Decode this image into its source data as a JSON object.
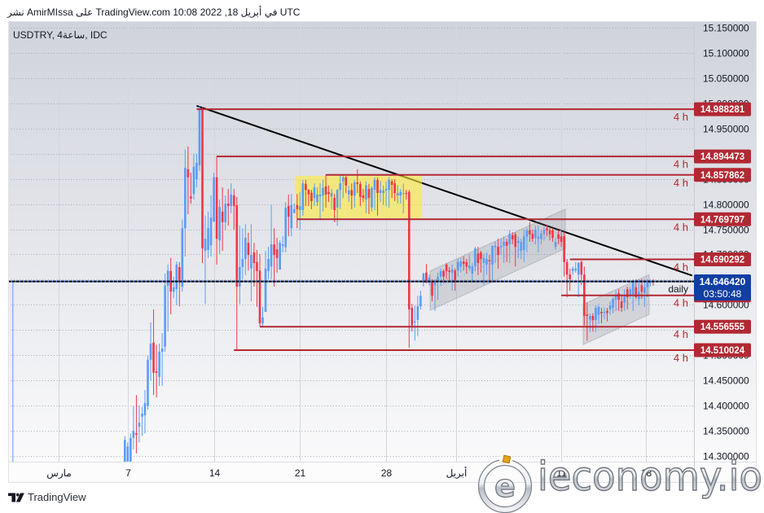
{
  "header": {
    "published_line": "نشر AmirMIssa على TradingView.com في أبريل 18, 2022 10:08 UTC"
  },
  "chart": {
    "symbol_line": "USDTRY, 4ساعة, IDC"
  },
  "footer": {
    "brand": "TradingView",
    "logo_icon": "tradingview-logo-icon"
  },
  "watermark": {
    "text": "ieconomy.io",
    "logo_icon": "ieconomy-e-logo-icon"
  },
  "colors": {
    "up": "#5b9cf6",
    "down": "#f23645",
    "level": "#b22833",
    "current_price_bg": "#113fa3",
    "current_price_line": "#3d6fe0",
    "trendline": "#000000",
    "highlight": "rgba(255,235,59,0.6)",
    "channel_fill": "rgba(120,123,134,0.22)",
    "channel_edge": "rgba(120,123,134,0.35)",
    "channel_mid": "#9db9ea"
  },
  "chart_data": {
    "type": "candlestick",
    "title": "USDTRY, 4ساعة, IDC",
    "xlabel": "",
    "ylabel": "",
    "ylim": [
      14.2887,
      15.1629
    ],
    "xlim_bars": [
      -40.65,
      198.2
    ],
    "grid": true,
    "y_ticks": [
      "15.150000",
      "15.100000",
      "15.050000",
      "15.000000",
      "14.950000",
      "14.900000",
      "14.850000",
      "14.800000",
      "14.750000",
      "14.700000",
      "14.650000",
      "14.600000",
      "14.550000",
      "14.500000",
      "14.450000",
      "14.400000",
      "14.350000",
      "14.300000"
    ],
    "x_ticks": [
      {
        "label": "مارس",
        "bar": -23
      },
      {
        "label": "7",
        "bar": 1
      },
      {
        "label": "14",
        "bar": 31
      },
      {
        "label": "21",
        "bar": 61
      },
      {
        "label": "28",
        "bar": 91
      },
      {
        "label": "أبريل",
        "bar": 115.5
      },
      {
        "label": "11",
        "bar": 152
      },
      {
        "label": "18",
        "bar": 181.5
      }
    ],
    "ohlc_order": [
      "open",
      "high",
      "low",
      "close"
    ],
    "first_bar": 0,
    "extra_bars": [
      {
        "bar": -39,
        "ohlc": [
          14.646,
          14.647,
          14.23,
          14.647
        ]
      }
    ],
    "candles": [
      [
        14.284,
        14.34,
        14.276,
        14.332
      ],
      [
        14.289,
        14.327,
        14.276,
        14.319
      ],
      [
        14.289,
        14.345,
        14.276,
        14.336
      ],
      [
        14.336,
        14.399,
        14.313,
        14.35
      ],
      [
        14.345,
        14.421,
        14.305,
        14.342
      ],
      [
        14.358,
        14.4,
        14.327,
        14.366
      ],
      [
        14.378,
        14.397,
        14.34,
        14.384
      ],
      [
        14.381,
        14.431,
        14.345,
        14.405
      ],
      [
        14.399,
        14.499,
        14.392,
        14.491
      ],
      [
        14.491,
        14.565,
        14.45,
        14.523
      ],
      [
        14.525,
        14.591,
        14.421,
        14.465
      ],
      [
        14.468,
        14.521,
        14.416,
        14.465
      ],
      [
        14.457,
        14.523,
        14.439,
        14.507
      ],
      [
        14.507,
        14.544,
        14.439,
        14.513
      ],
      [
        14.517,
        14.662,
        14.507,
        14.638
      ],
      [
        14.638,
        14.68,
        14.547,
        14.668
      ],
      [
        14.667,
        14.693,
        14.581,
        14.626
      ],
      [
        14.626,
        14.656,
        14.613,
        14.635
      ],
      [
        14.631,
        14.686,
        14.599,
        14.68
      ],
      [
        14.675,
        14.685,
        14.597,
        14.644
      ],
      [
        14.636,
        14.769,
        14.626,
        14.752
      ],
      [
        14.752,
        14.908,
        14.696,
        14.872
      ],
      [
        14.869,
        14.914,
        14.78,
        14.853
      ],
      [
        14.815,
        14.862,
        14.801,
        14.811
      ],
      [
        14.82,
        14.9,
        14.809,
        14.874
      ],
      [
        14.849,
        14.9,
        14.833,
        14.882
      ],
      [
        14.877,
        14.995,
        14.866,
        14.987
      ],
      [
        14.988,
        14.992,
        14.683,
        14.712
      ],
      [
        14.707,
        14.777,
        14.602,
        14.731
      ],
      [
        14.709,
        14.785,
        14.693,
        14.752
      ],
      [
        14.718,
        14.817,
        14.696,
        14.773
      ],
      [
        14.765,
        14.862,
        14.765,
        14.853
      ],
      [
        14.853,
        14.895,
        14.68,
        14.731
      ],
      [
        14.728,
        14.809,
        14.701,
        14.794
      ],
      [
        14.785,
        14.833,
        14.707,
        14.764
      ],
      [
        14.764,
        14.817,
        14.748,
        14.801
      ],
      [
        14.801,
        14.83,
        14.757,
        14.796
      ],
      [
        14.796,
        14.841,
        14.782,
        14.819
      ],
      [
        14.817,
        14.83,
        14.749,
        14.796
      ],
      [
        14.798,
        14.814,
        14.51,
        14.636
      ],
      [
        14.636,
        14.757,
        14.602,
        14.675
      ],
      [
        14.675,
        14.752,
        14.651,
        14.691
      ],
      [
        14.691,
        14.76,
        14.659,
        14.733
      ],
      [
        14.723,
        14.743,
        14.668,
        14.699
      ],
      [
        14.672,
        14.76,
        14.607,
        14.699
      ],
      [
        14.704,
        14.723,
        14.636,
        14.683
      ],
      [
        14.685,
        14.709,
        14.596,
        14.667
      ],
      [
        14.668,
        14.701,
        14.557,
        14.563
      ],
      [
        14.563,
        14.596,
        14.558,
        14.575
      ],
      [
        14.586,
        14.707,
        14.586,
        14.672
      ],
      [
        14.667,
        14.715,
        14.651,
        14.691
      ],
      [
        14.676,
        14.798,
        14.651,
        14.72
      ],
      [
        14.72,
        14.752,
        14.636,
        14.699
      ],
      [
        14.71,
        14.733,
        14.664,
        14.693
      ],
      [
        14.67,
        14.728,
        14.67,
        14.723
      ],
      [
        14.717,
        14.736,
        14.704,
        14.72
      ],
      [
        14.714,
        14.804,
        14.704,
        14.793
      ],
      [
        14.796,
        14.819,
        14.736,
        14.775
      ],
      [
        14.752,
        14.82,
        14.736,
        14.798
      ],
      [
        14.782,
        14.801,
        14.782,
        14.79
      ],
      [
        14.798,
        14.82,
        14.752,
        14.79
      ],
      [
        14.788,
        14.824,
        14.749,
        14.796
      ],
      [
        14.788,
        14.848,
        14.777,
        14.841
      ],
      [
        14.84,
        14.848,
        14.796,
        14.828
      ],
      [
        14.828,
        14.83,
        14.796,
        14.819
      ],
      [
        14.822,
        14.828,
        14.79,
        14.806
      ],
      [
        14.812,
        14.841,
        14.796,
        14.833
      ],
      [
        14.804,
        14.833,
        14.796,
        14.819
      ],
      [
        14.815,
        14.841,
        14.769,
        14.819
      ],
      [
        14.817,
        14.848,
        14.785,
        14.832
      ],
      [
        14.835,
        14.858,
        14.793,
        14.819
      ],
      [
        14.824,
        14.837,
        14.804,
        14.82
      ],
      [
        14.815,
        14.83,
        14.79,
        14.822
      ],
      [
        14.812,
        14.82,
        14.764,
        14.788
      ],
      [
        14.793,
        14.83,
        14.757,
        14.828
      ],
      [
        14.828,
        14.858,
        14.79,
        14.841
      ],
      [
        14.845,
        14.858,
        14.812,
        14.853
      ],
      [
        14.853,
        14.856,
        14.822,
        14.837
      ],
      [
        14.819,
        14.837,
        14.804,
        14.827
      ],
      [
        14.828,
        14.841,
        14.79,
        14.817
      ],
      [
        14.817,
        14.848,
        14.793,
        14.843
      ],
      [
        14.843,
        14.869,
        14.822,
        14.84
      ],
      [
        14.84,
        14.845,
        14.796,
        14.814
      ],
      [
        14.817,
        14.83,
        14.804,
        14.812
      ],
      [
        14.809,
        14.845,
        14.782,
        14.837
      ],
      [
        14.83,
        14.84,
        14.78,
        14.812
      ],
      [
        14.793,
        14.835,
        14.785,
        14.832
      ],
      [
        14.828,
        14.853,
        14.788,
        14.848
      ],
      [
        14.848,
        14.853,
        14.777,
        14.822
      ],
      [
        14.822,
        14.846,
        14.804,
        14.828
      ],
      [
        14.822,
        14.837,
        14.798,
        14.827
      ],
      [
        14.827,
        14.845,
        14.796,
        14.83
      ],
      [
        14.828,
        14.854,
        14.793,
        14.848
      ],
      [
        14.845,
        14.849,
        14.812,
        14.838
      ],
      [
        14.841,
        14.849,
        14.806,
        14.822
      ],
      [
        14.817,
        14.837,
        14.801,
        14.822
      ],
      [
        14.817,
        14.83,
        14.801,
        14.824
      ],
      [
        14.82,
        14.841,
        14.782,
        14.822
      ],
      [
        14.822,
        14.828,
        14.809,
        14.82
      ],
      [
        14.824,
        14.828,
        14.515,
        14.591
      ],
      [
        14.594,
        14.602,
        14.547,
        14.559
      ],
      [
        14.565,
        14.599,
        14.529,
        14.567
      ],
      [
        14.57,
        14.618,
        14.538,
        14.597
      ],
      [
        14.597,
        14.628,
        14.591,
        14.618
      ],
      [
        14.644,
        14.664,
        14.636,
        14.662
      ],
      [
        14.664,
        14.681,
        14.643,
        14.644
      ],
      [
        14.644,
        14.66,
        14.639,
        14.654
      ],
      [
        14.646,
        14.651,
        14.607,
        14.618
      ],
      [
        14.639,
        14.651,
        14.588,
        14.647
      ],
      [
        14.647,
        14.664,
        14.61,
        14.656
      ],
      [
        14.656,
        14.672,
        14.639,
        14.667
      ],
      [
        14.667,
        14.67,
        14.643,
        14.656
      ],
      [
        14.68,
        14.683,
        14.651,
        14.667
      ],
      [
        14.668,
        14.675,
        14.644,
        14.665
      ],
      [
        14.664,
        14.68,
        14.628,
        14.67
      ],
      [
        14.668,
        14.672,
        14.628,
        14.644
      ],
      [
        14.668,
        14.691,
        14.656,
        14.685
      ],
      [
        14.676,
        14.693,
        14.664,
        14.686
      ],
      [
        14.686,
        14.696,
        14.668,
        14.681
      ],
      [
        14.685,
        14.691,
        14.662,
        14.676
      ],
      [
        14.672,
        14.699,
        14.667,
        14.678
      ],
      [
        14.662,
        14.683,
        14.644,
        14.676
      ],
      [
        14.676,
        14.715,
        14.667,
        14.712
      ],
      [
        14.702,
        14.715,
        14.659,
        14.683
      ],
      [
        14.704,
        14.707,
        14.664,
        14.691
      ],
      [
        14.683,
        14.701,
        14.639,
        14.693
      ],
      [
        14.68,
        14.704,
        14.66,
        14.691
      ],
      [
        14.689,
        14.699,
        14.644,
        14.686
      ],
      [
        14.68,
        14.718,
        14.644,
        14.717
      ],
      [
        14.714,
        14.725,
        14.683,
        14.717
      ],
      [
        14.715,
        14.731,
        14.672,
        14.699
      ],
      [
        14.714,
        14.731,
        14.699,
        14.717
      ],
      [
        14.717,
        14.736,
        14.683,
        14.725
      ],
      [
        14.725,
        14.731,
        14.685,
        14.717
      ],
      [
        14.72,
        14.748,
        14.683,
        14.741
      ],
      [
        14.738,
        14.744,
        14.72,
        14.73
      ],
      [
        14.74,
        14.744,
        14.676,
        14.715
      ],
      [
        14.723,
        14.736,
        14.693,
        14.727
      ],
      [
        14.707,
        14.731,
        14.691,
        14.725
      ],
      [
        14.709,
        14.749,
        14.685,
        14.736
      ],
      [
        14.736,
        14.752,
        14.704,
        14.748
      ],
      [
        14.748,
        14.764,
        14.725,
        14.74
      ],
      [
        14.741,
        14.749,
        14.725,
        14.731
      ],
      [
        14.733,
        14.757,
        14.72,
        14.749
      ],
      [
        14.731,
        14.757,
        14.704,
        14.735
      ],
      [
        14.731,
        14.748,
        14.72,
        14.741
      ],
      [
        14.74,
        14.756,
        14.728,
        14.749
      ],
      [
        14.752,
        14.759,
        14.736,
        14.748
      ],
      [
        14.748,
        14.752,
        14.728,
        14.74
      ],
      [
        14.748,
        14.752,
        14.725,
        14.733
      ],
      [
        14.715,
        14.733,
        14.709,
        14.725
      ],
      [
        14.74,
        14.748,
        14.72,
        14.731
      ],
      [
        14.736,
        14.744,
        14.715,
        14.725
      ],
      [
        14.736,
        14.744,
        14.656,
        14.685
      ],
      [
        14.685,
        14.691,
        14.615,
        14.66
      ],
      [
        14.66,
        14.672,
        14.628,
        14.651
      ],
      [
        14.667,
        14.676,
        14.66,
        14.672
      ],
      [
        14.668,
        14.685,
        14.664,
        14.672
      ],
      [
        14.66,
        14.685,
        14.615,
        14.683
      ],
      [
        14.685,
        14.688,
        14.639,
        14.66
      ],
      [
        14.66,
        14.676,
        14.559,
        14.578
      ],
      [
        14.581,
        14.604,
        14.529,
        14.578
      ],
      [
        14.571,
        14.583,
        14.546,
        14.578
      ],
      [
        14.578,
        14.583,
        14.547,
        14.57
      ],
      [
        14.57,
        14.599,
        14.546,
        14.594
      ],
      [
        14.58,
        14.602,
        14.562,
        14.596
      ],
      [
        14.586,
        14.594,
        14.563,
        14.583
      ],
      [
        14.584,
        14.594,
        14.571,
        14.586
      ],
      [
        14.588,
        14.594,
        14.567,
        14.584
      ],
      [
        14.591,
        14.607,
        14.58,
        14.599
      ],
      [
        14.594,
        14.615,
        14.583,
        14.612
      ],
      [
        14.61,
        14.628,
        14.588,
        14.618
      ],
      [
        14.623,
        14.631,
        14.588,
        14.61
      ],
      [
        14.607,
        14.618,
        14.586,
        14.594
      ],
      [
        14.604,
        14.631,
        14.588,
        14.618
      ],
      [
        14.631,
        14.636,
        14.591,
        14.615
      ],
      [
        14.618,
        14.636,
        14.612,
        14.631
      ],
      [
        14.618,
        14.651,
        14.588,
        14.644
      ],
      [
        14.635,
        14.651,
        14.612,
        14.615
      ],
      [
        14.612,
        14.651,
        14.599,
        14.626
      ],
      [
        14.639,
        14.651,
        14.612,
        14.626
      ],
      [
        14.623,
        14.651,
        14.596,
        14.635
      ],
      [
        14.635,
        14.651,
        14.615,
        14.644
      ],
      [
        14.643,
        14.651,
        14.636,
        14.647
      ],
      [
        14.648,
        14.651,
        14.638,
        14.646
      ]
    ],
    "levels": [
      {
        "price": 14.988281,
        "label": "14.988281",
        "timeframe": "4 h",
        "start_bar": 25
      },
      {
        "price": 14.894473,
        "label": "14.894473",
        "timeframe": "4 h",
        "start_bar": 32
      },
      {
        "price": 14.857862,
        "label": "14.857862",
        "timeframe": "4 h",
        "start_bar": 70
      },
      {
        "price": 14.769797,
        "label": "14.769797",
        "timeframe": "4 h",
        "start_bar": 60
      },
      {
        "price": 14.690292,
        "label": "14.690292",
        "timeframe": "4 h",
        "start_bar": 155
      },
      {
        "price": 14.6188,
        "timeframe": "4 h",
        "start_bar": 152
      },
      {
        "price": 14.556555,
        "label": "14.556555",
        "timeframe": "4 h",
        "start_bar": 47
      },
      {
        "price": 14.510024,
        "label": "14.510024",
        "timeframe": "4 h",
        "start_bar": 38
      }
    ],
    "current_price": {
      "price": 14.64642,
      "label": "14.646420",
      "countdown": "03:50:48",
      "line_label": "daily"
    },
    "drawings": {
      "trendline": {
        "from": {
          "bar": 25,
          "price": 14.995
        },
        "to": {
          "bar": 197.6,
          "price": 14.658
        }
      },
      "highlight_box": {
        "from_bar": 59.2,
        "to_bar": 103.5,
        "top": 14.856,
        "bottom": 14.772
      },
      "channels": [
        {
          "start_bar": 106.3,
          "end_bar": 153.4,
          "top_start": 14.667,
          "top_end": 14.79,
          "bottom_start": 14.589,
          "bottom_end": 14.712
        },
        {
          "start_bar": 159.6,
          "end_bar": 182.6,
          "top_start": 14.601,
          "top_end": 14.66,
          "bottom_start": 14.521,
          "bottom_end": 14.581
        }
      ]
    }
  }
}
